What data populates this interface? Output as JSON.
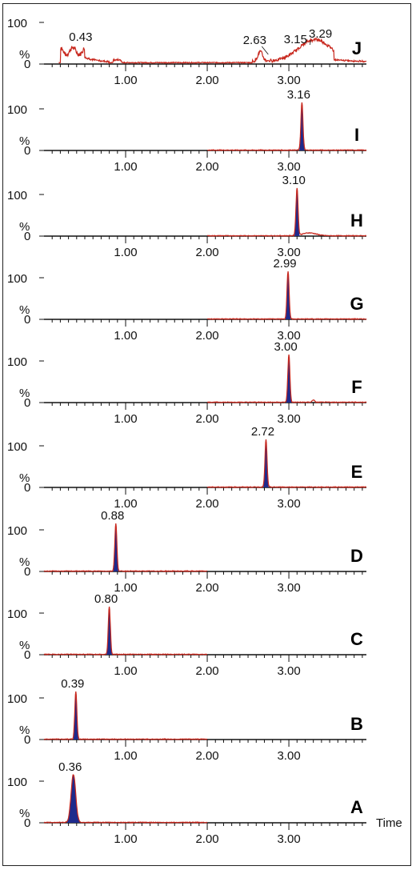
{
  "figure": {
    "x_axis_title": "Time",
    "y_tick_labels": [
      "100",
      "%",
      "0"
    ],
    "x_tick_labels": [
      "1.00",
      "2.00",
      "3.00"
    ],
    "colors": {
      "trace": "#c8281e",
      "fill": "#1e2a8c",
      "axis": "#111111"
    }
  },
  "chart_data": [
    {
      "type": "line",
      "panel": "J",
      "x_range": [
        0,
        3.95
      ],
      "ylim": [
        0,
        100
      ],
      "peak_labels": [
        "0.43",
        "2.63",
        "3.15",
        "3.29"
      ],
      "peaks": [
        {
          "x": 0.43,
          "y": 45
        },
        {
          "x": 2.63,
          "y": 22
        },
        {
          "x": 3.15,
          "y": 40
        },
        {
          "x": 3.29,
          "y": 55
        }
      ],
      "noisy_baseline": true
    },
    {
      "type": "line",
      "panel": "I",
      "x_range": [
        0,
        3.95
      ],
      "ylim": [
        0,
        100
      ],
      "peak_labels": [
        "3.16"
      ],
      "peaks": [
        {
          "x": 3.16,
          "y": 100
        }
      ],
      "baseline_start": 2.0
    },
    {
      "type": "line",
      "panel": "H",
      "x_range": [
        0,
        3.95
      ],
      "ylim": [
        0,
        100
      ],
      "peak_labels": [
        "3.10"
      ],
      "peaks": [
        {
          "x": 3.1,
          "y": 100
        }
      ],
      "baseline_start": 2.0
    },
    {
      "type": "line",
      "panel": "G",
      "x_range": [
        0,
        3.95
      ],
      "ylim": [
        0,
        100
      ],
      "peak_labels": [
        "2.99"
      ],
      "peaks": [
        {
          "x": 2.99,
          "y": 100
        }
      ],
      "baseline_start": 2.0
    },
    {
      "type": "line",
      "panel": "F",
      "x_range": [
        0,
        3.95
      ],
      "ylim": [
        0,
        100
      ],
      "peak_labels": [
        "3.00"
      ],
      "peaks": [
        {
          "x": 3.0,
          "y": 100
        }
      ],
      "baseline_start": 2.0
    },
    {
      "type": "line",
      "panel": "E",
      "x_range": [
        0,
        3.95
      ],
      "ylim": [
        0,
        100
      ],
      "peak_labels": [
        "2.72"
      ],
      "peaks": [
        {
          "x": 2.72,
          "y": 100
        }
      ],
      "baseline_start": 2.0
    },
    {
      "type": "line",
      "panel": "D",
      "x_range": [
        0,
        3.95
      ],
      "ylim": [
        0,
        100
      ],
      "peak_labels": [
        "0.88"
      ],
      "peaks": [
        {
          "x": 0.88,
          "y": 100
        }
      ],
      "baseline_start": 0.0,
      "baseline_end": 2.0
    },
    {
      "type": "line",
      "panel": "C",
      "x_range": [
        0,
        3.95
      ],
      "ylim": [
        0,
        100
      ],
      "peak_labels": [
        "0.80"
      ],
      "peaks": [
        {
          "x": 0.8,
          "y": 100
        }
      ],
      "baseline_start": 0.0,
      "baseline_end": 2.0
    },
    {
      "type": "line",
      "panel": "B",
      "x_range": [
        0,
        3.95
      ],
      "ylim": [
        0,
        100
      ],
      "peak_labels": [
        "0.39"
      ],
      "peaks": [
        {
          "x": 0.39,
          "y": 100
        }
      ],
      "baseline_start": 0.0,
      "baseline_end": 2.0
    },
    {
      "type": "line",
      "panel": "A",
      "x_range": [
        0,
        3.95
      ],
      "ylim": [
        0,
        100
      ],
      "peak_labels": [
        "0.36"
      ],
      "peaks": [
        {
          "x": 0.36,
          "y": 100
        }
      ],
      "baseline_start": 0.0,
      "baseline_end": 2.0,
      "broad_peak": true
    }
  ]
}
